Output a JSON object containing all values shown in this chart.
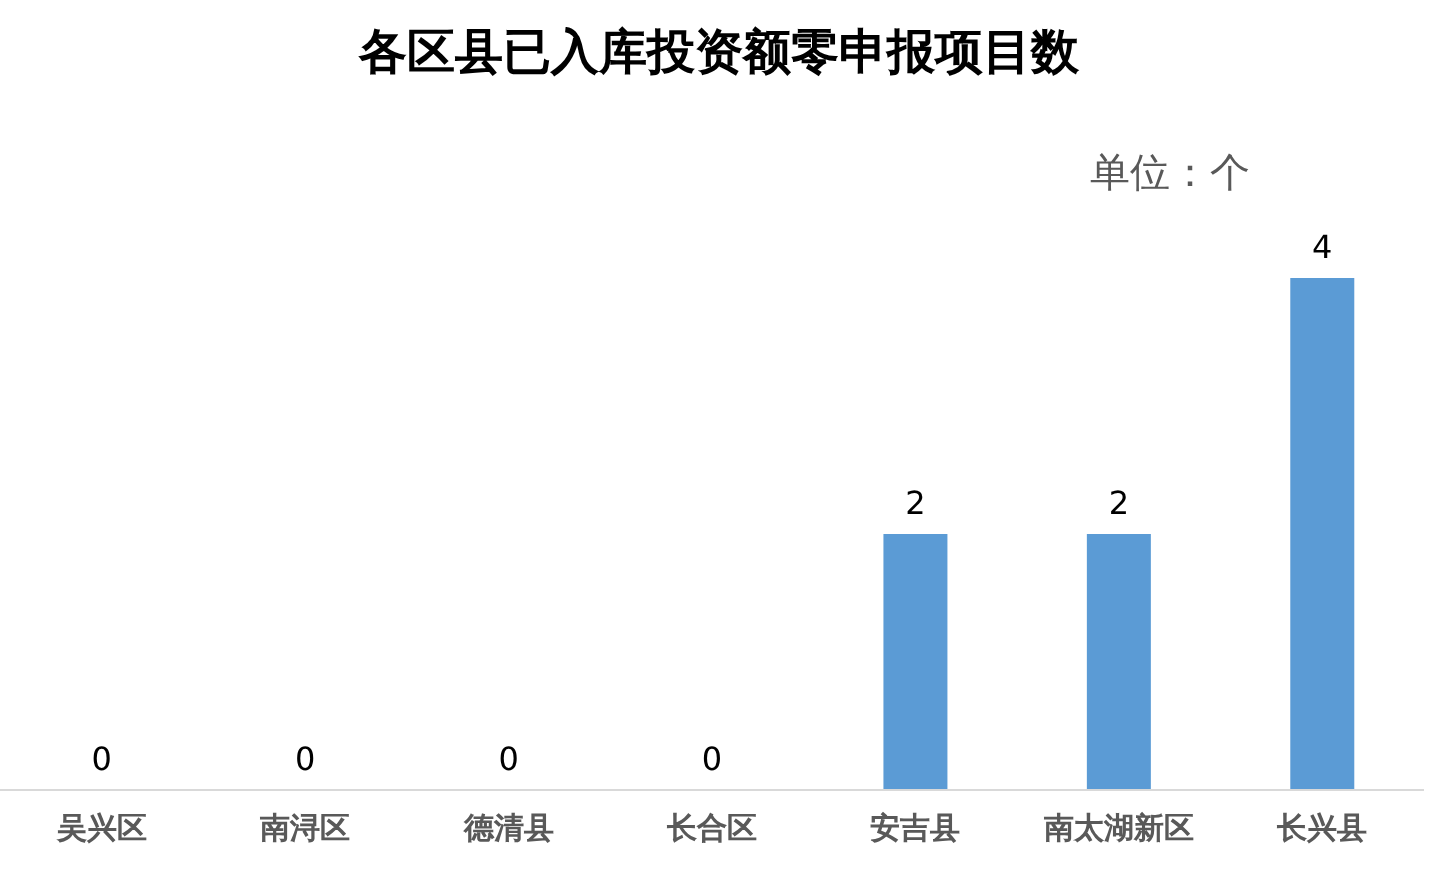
{
  "chart_data": {
    "type": "bar",
    "title": "各区县已入库投资额零申报项目数",
    "categories": [
      "吴兴区",
      "南浔区",
      "德清县",
      "长合区",
      "安吉县",
      "南太湖新区",
      "长兴县"
    ],
    "values": [
      0,
      0,
      0,
      0,
      2,
      2,
      4
    ],
    "color": "#5b9bd5",
    "data_labels": true,
    "annotations": [
      "单位：个"
    ]
  }
}
